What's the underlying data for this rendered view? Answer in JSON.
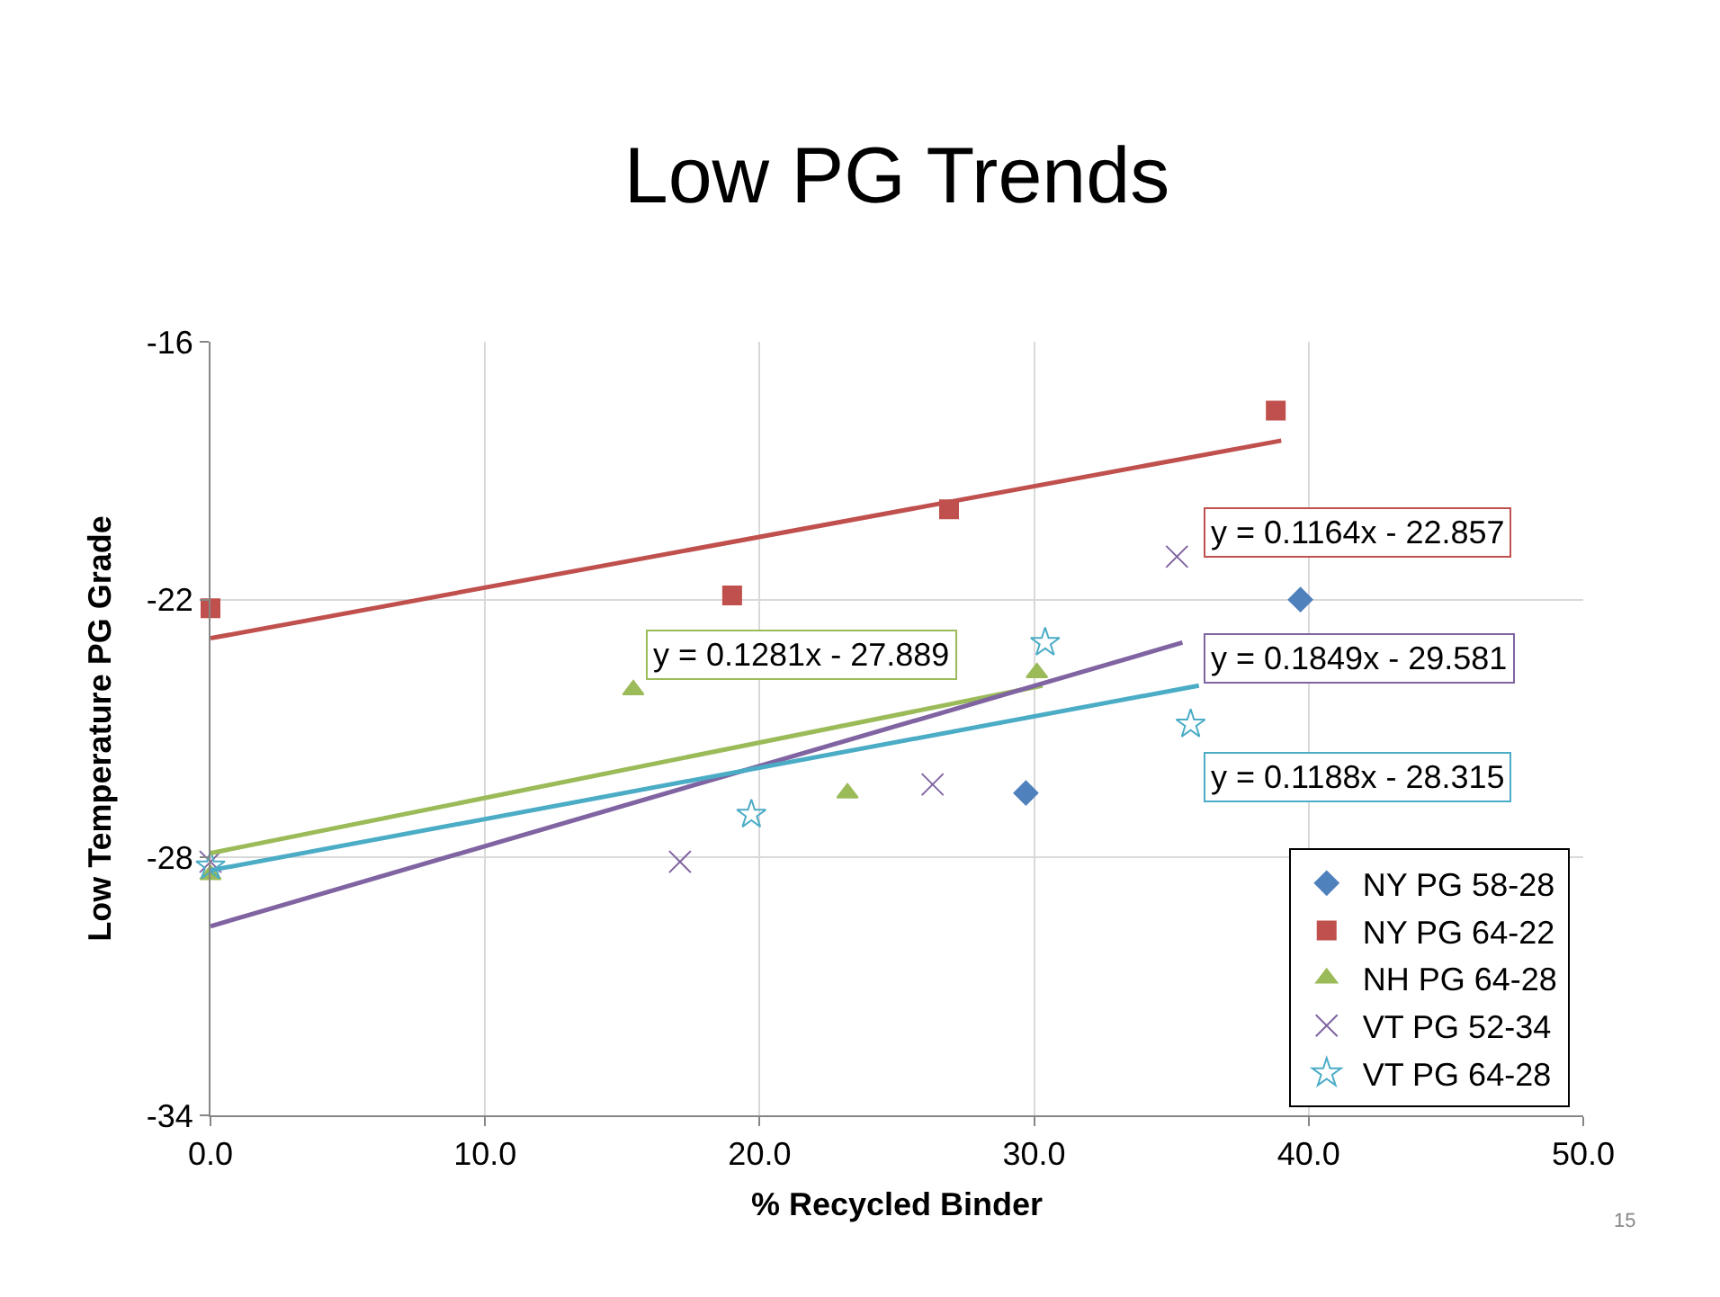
{
  "chart_data": {
    "type": "scatter",
    "title": "Low PG Trends",
    "xlabel": "% Recycled Binder",
    "ylabel": "Low Temperature PG Grade",
    "xlim": [
      0,
      50
    ],
    "xticks": [
      {
        "value": 0,
        "label": "0.0"
      },
      {
        "value": 10,
        "label": "10.0"
      },
      {
        "value": 20,
        "label": "20.0"
      },
      {
        "value": 30,
        "label": "30.0"
      },
      {
        "value": 40,
        "label": "40.0"
      },
      {
        "value": 50,
        "label": "50.0"
      }
    ],
    "ylim": [
      -34,
      -16
    ],
    "yticks": [
      -34,
      -28,
      -22,
      -16
    ],
    "grid": true,
    "legend": "bottom right",
    "series": [
      {
        "name": "NY PG 58-28",
        "color": "#4f81bd",
        "marker": "diamond",
        "x": [
          29.7,
          39.7
        ],
        "values": [
          -26.5,
          -22.0
        ]
      },
      {
        "name": "NY PG 64-22",
        "color": "#c0504d",
        "marker": "square",
        "x": [
          0,
          19.0,
          26.9,
          38.8
        ],
        "values": [
          -22.2,
          -21.9,
          -19.9,
          -17.6
        ]
      },
      {
        "name": "NH PG 64-28",
        "color": "#9bbb59",
        "marker": "triangle",
        "x": [
          0,
          15.4,
          23.2,
          30.1
        ],
        "values": [
          -28.4,
          -24.1,
          -26.5,
          -23.7
        ]
      },
      {
        "name": "VT PG 52-34",
        "color": "#8064a2",
        "marker": "cross",
        "x": [
          0,
          17.1,
          26.3,
          35.2
        ],
        "values": [
          -28.1,
          -28.1,
          -26.3,
          -21.0
        ]
      },
      {
        "name": "VT PG 64-28",
        "color": "#4bacc6",
        "marker": "star",
        "x": [
          0,
          19.7,
          30.4,
          35.7
        ],
        "values": [
          -28.2,
          -27.0,
          -23.0,
          -24.9
        ]
      },
      {
        "type": "line",
        "color": "#c0504d",
        "x": [
          0,
          39
        ],
        "values": [
          -22.9,
          -18.3
        ]
      },
      {
        "type": "line",
        "color": "#9bbb59",
        "x": [
          0,
          30.3
        ],
        "values": [
          -27.9,
          -24.0
        ]
      },
      {
        "type": "line",
        "color": "#8064a2",
        "x": [
          0,
          35.4
        ],
        "values": [
          -29.6,
          -23.0
        ]
      },
      {
        "type": "line",
        "color": "#4bacc6",
        "x": [
          0,
          36
        ],
        "values": [
          -28.3,
          -24.0
        ]
      }
    ],
    "annotations": [
      "y = 0.1164x - 22.857",
      "y = 0.1281x - 27.889",
      "y = 0.1849x - 29.581",
      "y = 0.1188x - 28.315",
      "15"
    ]
  }
}
